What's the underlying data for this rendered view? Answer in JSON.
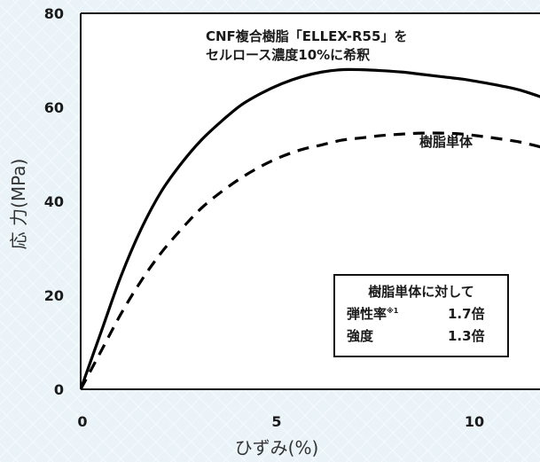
{
  "chart_data": {
    "type": "line",
    "xlabel": "ひずみ(%)",
    "ylabel": "応 力(MPa)",
    "xlim": [
      0,
      11.7
    ],
    "ylim": [
      0,
      80
    ],
    "x_ticks": [
      "0",
      "5",
      "10"
    ],
    "y_ticks": [
      "0",
      "20",
      "40",
      "60",
      "80"
    ],
    "series": [
      {
        "name": "CNF複合樹脂「ELLEX-R55」をセルロース濃度10%に希釈",
        "style": "solid",
        "color": "#000000",
        "points": [
          [
            0,
            0
          ],
          [
            0.5,
            12
          ],
          [
            1,
            24
          ],
          [
            1.5,
            34
          ],
          [
            2,
            42
          ],
          [
            2.5,
            48
          ],
          [
            3,
            53
          ],
          [
            3.5,
            57
          ],
          [
            4,
            60.5
          ],
          [
            4.5,
            63
          ],
          [
            5,
            65
          ],
          [
            5.5,
            66.5
          ],
          [
            6,
            67.5
          ],
          [
            6.5,
            68
          ],
          [
            7,
            68
          ],
          [
            7.5,
            67.8
          ],
          [
            8,
            67.5
          ],
          [
            8.5,
            67
          ],
          [
            9,
            66.5
          ],
          [
            9.5,
            66
          ],
          [
            10,
            65.3
          ],
          [
            10.5,
            64.5
          ],
          [
            11,
            63.5
          ],
          [
            11.7,
            61.5
          ]
        ]
      },
      {
        "name": "樹脂単体",
        "style": "dashed",
        "color": "#000000",
        "points": [
          [
            0,
            0
          ],
          [
            0.5,
            8
          ],
          [
            1,
            16
          ],
          [
            1.5,
            23
          ],
          [
            2,
            29
          ],
          [
            2.5,
            34
          ],
          [
            3,
            38.5
          ],
          [
            3.5,
            42
          ],
          [
            4,
            45
          ],
          [
            4.5,
            47.5
          ],
          [
            5,
            49.5
          ],
          [
            5.5,
            51
          ],
          [
            6,
            52
          ],
          [
            6.5,
            53
          ],
          [
            7,
            53.5
          ],
          [
            7.5,
            54
          ],
          [
            8,
            54.3
          ],
          [
            8.5,
            54.5
          ],
          [
            9,
            54.5
          ],
          [
            9.5,
            54.3
          ],
          [
            10,
            53.8
          ],
          [
            10.5,
            53.2
          ],
          [
            11,
            52.5
          ],
          [
            11.7,
            51
          ]
        ]
      }
    ],
    "annotations": {
      "solid_label_line1": "CNF複合樹脂「ELLEX-R55」を",
      "solid_label_line2": "セルロース濃度10%に希釈",
      "dashed_label": "樹脂単体",
      "box_title": "樹脂単体に対して",
      "box_row1_label": "弾性率",
      "box_row1_mark": "※1",
      "box_row1_value": "1.7倍",
      "box_row2_label": "強度",
      "box_row2_value": "1.3倍"
    },
    "grid": false,
    "legend": "none"
  }
}
